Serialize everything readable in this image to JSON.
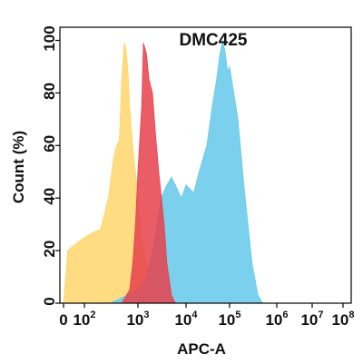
{
  "chart_data": {
    "type": "area",
    "title": "DMC425",
    "xlabel": "APC-A",
    "ylabel": "Count  (%)",
    "x_scale": "biexponential-log",
    "xlim": [
      0,
      100000000
    ],
    "ylim": [
      0,
      105
    ],
    "x_ticks": [
      {
        "base": "0",
        "exp": ""
      },
      {
        "base": "10",
        "exp": "2"
      },
      {
        "base": "10",
        "exp": "3"
      },
      {
        "base": "10",
        "exp": "4"
      },
      {
        "base": "10",
        "exp": "5"
      },
      {
        "base": "10",
        "exp": "6"
      },
      {
        "base": "10",
        "exp": "7"
      },
      {
        "base": "10",
        "exp": "8"
      }
    ],
    "y_ticks": [
      "0",
      "20",
      "40",
      "60",
      "80",
      "100"
    ],
    "grid": false,
    "series": [
      {
        "color": "#FFD66B",
        "opacity": 0.85,
        "x": [
          0,
          20,
          50,
          100,
          150,
          200,
          280,
          350,
          400,
          450,
          500,
          550,
          600,
          650,
          700,
          800,
          1000,
          1200,
          1500,
          2000,
          2500,
          3000
        ],
        "y": [
          0,
          20,
          22,
          25,
          27,
          28,
          40,
          55,
          60,
          62,
          85,
          99,
          97,
          88,
          75,
          60,
          40,
          25,
          15,
          5,
          2,
          0
        ]
      },
      {
        "color": "#6BCBEB",
        "opacity": 0.9,
        "x": [
          300,
          1000,
          1500,
          2000,
          2500,
          3000,
          4000,
          5000,
          6000,
          8000,
          10000,
          15000,
          20000,
          30000,
          40000,
          50000,
          60000,
          70000,
          80000,
          90000,
          100000,
          150000,
          200000,
          300000,
          400000,
          500000
        ],
        "y": [
          0,
          5,
          10,
          20,
          30,
          40,
          45,
          48,
          45,
          40,
          45,
          42,
          50,
          60,
          75,
          85,
          95,
          100,
          95,
          88,
          90,
          70,
          45,
          15,
          3,
          0
        ]
      },
      {
        "color": "#E8414B",
        "opacity": 0.85,
        "x": [
          500,
          700,
          800,
          900,
          1000,
          1200,
          1300,
          1500,
          1700,
          2000,
          2300,
          2700,
          3000,
          3500,
          4000,
          5000,
          6000
        ],
        "y": [
          0,
          5,
          15,
          30,
          50,
          75,
          99,
          95,
          85,
          80,
          65,
          50,
          42,
          30,
          15,
          3,
          0
        ]
      }
    ]
  }
}
